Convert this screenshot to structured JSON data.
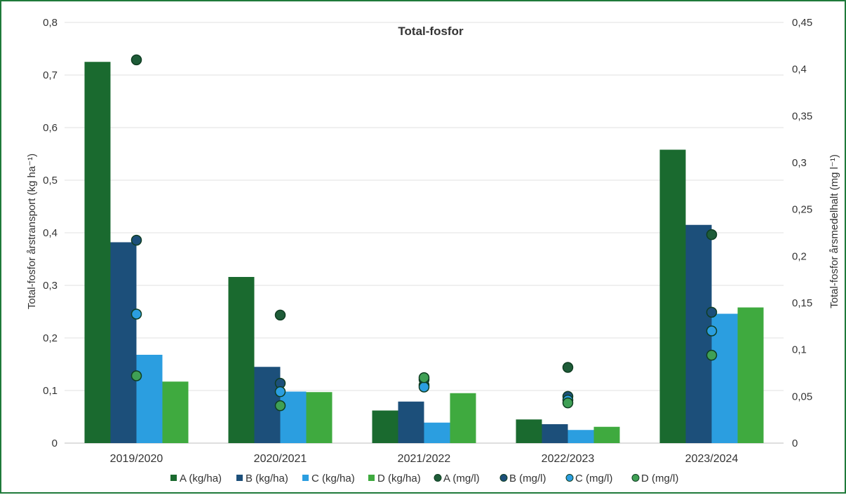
{
  "chart_data": {
    "type": "bar",
    "title": "Total-fosfor",
    "categories": [
      "2019/2020",
      "2020/2021",
      "2021/2022",
      "2022/2023",
      "2023/2024"
    ],
    "ylabel": "Total-fosfor årstransport (kg ha⁻¹)",
    "y2label": "Total-fosfor årsmedelhalt (mg l⁻¹)",
    "ylim": [
      0,
      0.8
    ],
    "y2lim": [
      0,
      0.45
    ],
    "yticks": [
      "0",
      "0,1",
      "0,2",
      "0,3",
      "0,4",
      "0,5",
      "0,6",
      "0,7",
      "0,8"
    ],
    "y2ticks": [
      "0",
      "0,05",
      "0,1",
      "0,15",
      "0,2",
      "0,25",
      "0,3",
      "0,35",
      "0,4",
      "0,45"
    ],
    "grid": true,
    "legend_position": "bottom",
    "bar_series": [
      {
        "name": "A (kg/ha)",
        "color": "#1a6a2f",
        "values": [
          0.725,
          0.316,
          0.062,
          0.045,
          0.558
        ]
      },
      {
        "name": "B (kg/ha)",
        "color": "#1c4f7a",
        "values": [
          0.382,
          0.145,
          0.079,
          0.036,
          0.415
        ]
      },
      {
        "name": "C (kg/ha)",
        "color": "#2b9ee0",
        "values": [
          0.168,
          0.098,
          0.039,
          0.025,
          0.246
        ]
      },
      {
        "name": "D (kg/ha)",
        "color": "#3faa3f",
        "values": [
          0.117,
          0.097,
          0.095,
          0.031,
          0.258
        ]
      }
    ],
    "point_series": [
      {
        "name": "A (mg/l)",
        "color": "#1e5c38",
        "values": [
          0.41,
          0.137,
          0.062,
          0.081,
          0.223
        ]
      },
      {
        "name": "B (mg/l)",
        "color": "#1c4f7a",
        "values": [
          0.217,
          0.064,
          0.068,
          0.05,
          0.14
        ]
      },
      {
        "name": "C (mg/l)",
        "color": "#2b9ee0",
        "values": [
          0.138,
          0.055,
          0.06,
          0.046,
          0.12
        ]
      },
      {
        "name": "D (mg/l)",
        "color": "#3fa055",
        "values": [
          0.072,
          0.04,
          0.07,
          0.043,
          0.094
        ]
      }
    ]
  }
}
